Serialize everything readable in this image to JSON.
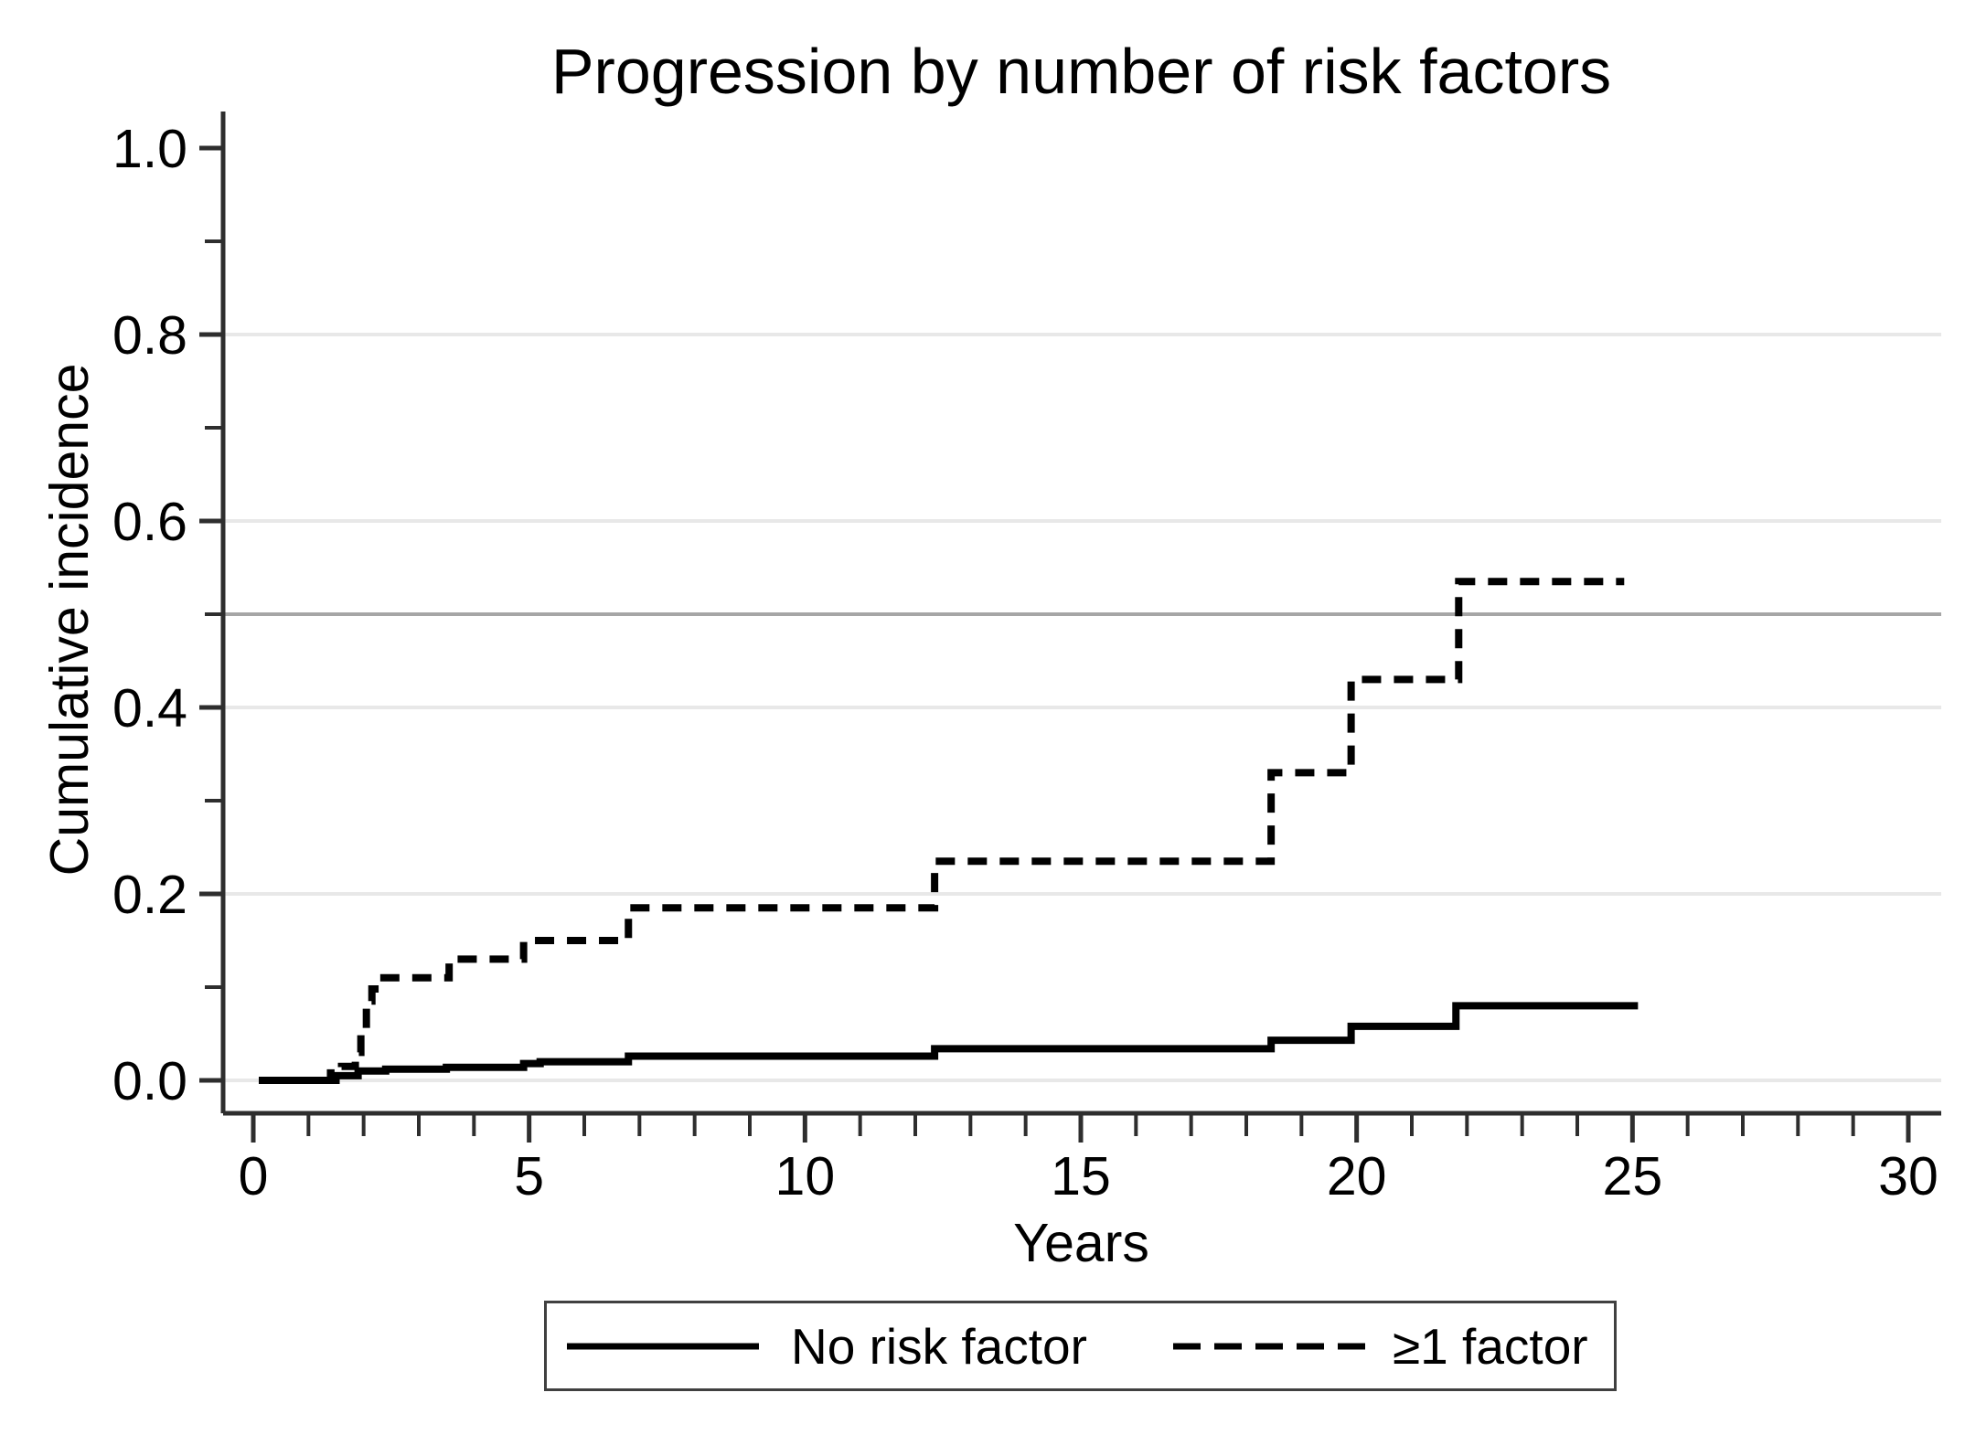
{
  "title": "Progression by number of risk factors",
  "x_axis": {
    "label": "Years",
    "min": 0,
    "max": 30,
    "major_ticks": [
      {
        "value": 0,
        "label": "0"
      },
      {
        "value": 5,
        "label": "5"
      },
      {
        "value": 10,
        "label": "10"
      },
      {
        "value": 15,
        "label": "15"
      },
      {
        "value": 20,
        "label": "20"
      },
      {
        "value": 25,
        "label": "25"
      },
      {
        "value": 30,
        "label": "30"
      }
    ],
    "minor_tick_step": 1
  },
  "y_axis": {
    "label": "Cumulative incidence",
    "min": 0.0,
    "max": 1.0,
    "major_ticks": [
      {
        "value": 0.0,
        "label": "0.0"
      },
      {
        "value": 0.2,
        "label": "0.2"
      },
      {
        "value": 0.4,
        "label": "0.4"
      },
      {
        "value": 0.6,
        "label": "0.6"
      },
      {
        "value": 0.8,
        "label": "0.8"
      },
      {
        "value": 1.0,
        "label": "1.0"
      }
    ],
    "minor_ticks": [
      0.1,
      0.3,
      0.5,
      0.7,
      0.9
    ]
  },
  "gridlines": {
    "light_values": [
      0.0,
      0.2,
      0.4,
      0.6,
      0.8
    ],
    "light_color": "#e8e8e8",
    "reference_value": 0.5,
    "reference_color": "#a6a6a6"
  },
  "colors": {
    "axis": "#2e2e2e",
    "text": "#000000",
    "curve": "#000000",
    "legend_border": "#404040"
  },
  "legend": {
    "items": [
      {
        "label": "No risk factor",
        "line_style": "solid"
      },
      {
        "label": "≥1 factor",
        "line_style": "dashed"
      }
    ]
  },
  "chart_data": {
    "type": "line",
    "subtype": "step-cumulative-incidence",
    "title": "Progression by number of risk factors",
    "xlabel": "Years",
    "ylabel": "Cumulative incidence",
    "xlim": [
      0,
      30
    ],
    "ylim": [
      0.0,
      1.0
    ],
    "grid": "horizontal light gridlines at 0.0,0.2,0.4,0.6,0.8 plus gray reference line at 0.5; left and bottom axes only",
    "legend_position": "bottom-center-boxed",
    "series": [
      {
        "name": "No risk factor",
        "line": "solid",
        "color": "#000000",
        "step_points": [
          [
            0.1,
            0.0
          ],
          [
            1.5,
            0.005
          ],
          [
            1.9,
            0.01
          ],
          [
            2.4,
            0.012
          ],
          [
            3.5,
            0.014
          ],
          [
            4.9,
            0.018
          ],
          [
            5.2,
            0.02
          ],
          [
            6.8,
            0.026
          ],
          [
            12.35,
            0.034
          ],
          [
            18.45,
            0.043
          ],
          [
            19.9,
            0.058
          ],
          [
            21.8,
            0.08
          ],
          [
            25.1,
            0.08
          ]
        ]
      },
      {
        "name": "≥1 factor",
        "line": "dashed",
        "color": "#000000",
        "step_points": [
          [
            0.1,
            0.0
          ],
          [
            1.4,
            0.008
          ],
          [
            1.6,
            0.015
          ],
          [
            1.85,
            0.03
          ],
          [
            1.95,
            0.055
          ],
          [
            2.05,
            0.085
          ],
          [
            2.15,
            0.098
          ],
          [
            2.3,
            0.11
          ],
          [
            3.55,
            0.13
          ],
          [
            4.9,
            0.15
          ],
          [
            6.8,
            0.185
          ],
          [
            12.35,
            0.235
          ],
          [
            18.45,
            0.33
          ],
          [
            19.9,
            0.43
          ],
          [
            21.85,
            0.535
          ],
          [
            24.85,
            0.535
          ]
        ]
      }
    ]
  }
}
